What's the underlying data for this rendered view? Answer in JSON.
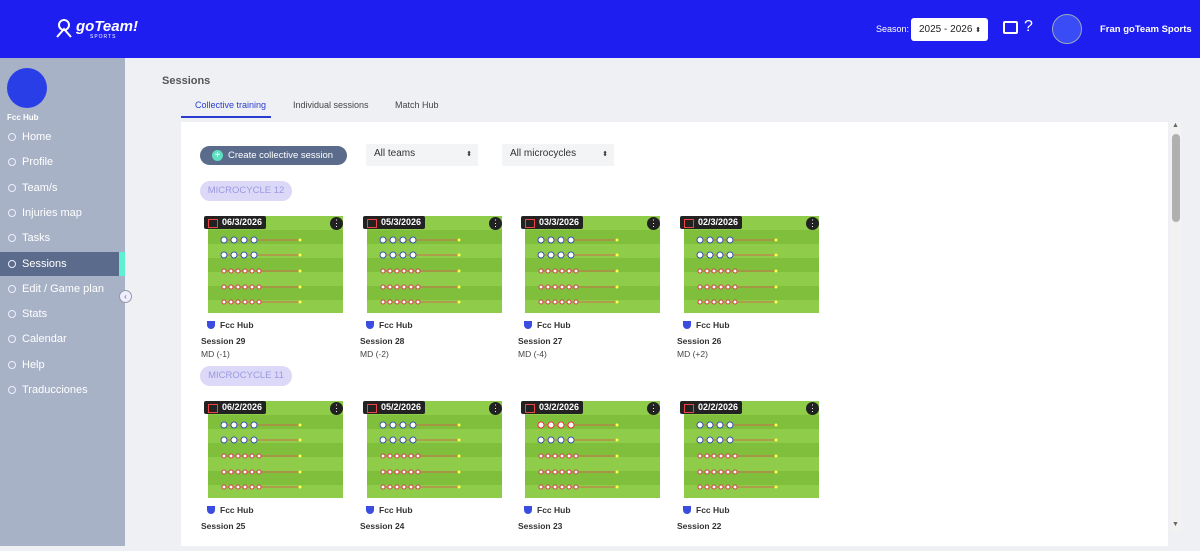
{
  "header": {
    "logo": "goTeam!",
    "logo_sub": "SPORTS",
    "season_label": "Season:",
    "season_value": "2025 - 2026",
    "user_name": "Fran goTeam Sports"
  },
  "sidebar": {
    "club": "Fcc Hub",
    "nav": [
      "Home",
      "Profile",
      "Team/s",
      "Injuries map",
      "Tasks",
      "Sessions",
      "Edit / Game plan",
      "Stats",
      "Calendar",
      "Help",
      "Traducciones"
    ],
    "active": 5
  },
  "main": {
    "title": "Sessions",
    "tabs": [
      "Collective training",
      "Individual sessions",
      "Match Hub"
    ],
    "active_tab": 0,
    "create_button": "Create collective session",
    "filters": [
      "All teams",
      "All microcycles"
    ],
    "microcycles": [
      {
        "name": "MICROCYCLE 12",
        "sessions": [
          {
            "date": "06/3/2026",
            "team": "Fcc Hub",
            "name": "Session 29",
            "md": "MD (-1)"
          },
          {
            "date": "05/3/2026",
            "team": "Fcc Hub",
            "name": "Session 28",
            "md": "MD (-2)"
          },
          {
            "date": "03/3/2026",
            "team": "Fcc Hub",
            "name": "Session 27",
            "md": "MD (-4)"
          },
          {
            "date": "02/3/2026",
            "team": "Fcc Hub",
            "name": "Session 26",
            "md": "MD (+2)"
          }
        ]
      },
      {
        "name": "MICROCYCLE 11",
        "sessions": [
          {
            "date": "06/2/2026",
            "team": "Fcc Hub",
            "name": "Session 25"
          },
          {
            "date": "05/2/2026",
            "team": "Fcc Hub",
            "name": "Session 24"
          },
          {
            "date": "03/2/2026",
            "team": "Fcc Hub",
            "name": "Session 23"
          },
          {
            "date": "02/2/2026",
            "team": "Fcc Hub",
            "name": "Session 22"
          }
        ]
      }
    ]
  }
}
